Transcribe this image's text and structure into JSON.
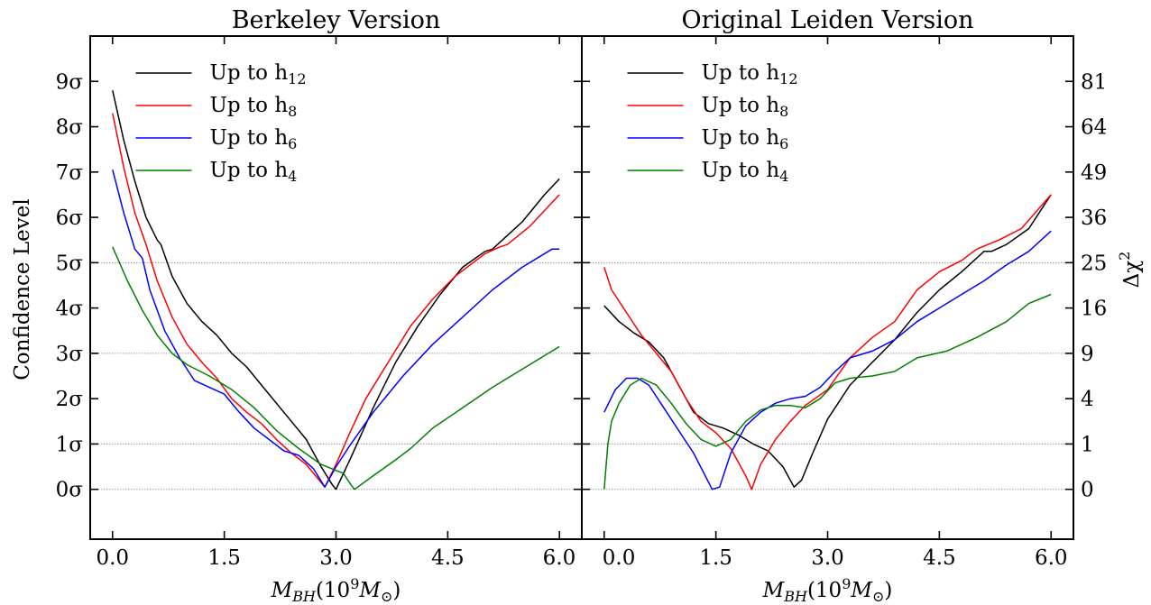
{
  "chart_data": [
    {
      "type": "line",
      "title": "Berkeley Version",
      "ylabel": "Confidence Level",
      "xlabel": "M_{BH}(10^9 M_⊙)",
      "xlabel_parts": {
        "a": "M",
        "b": "BH",
        "c": "(10",
        "d": "9",
        "e": "M",
        "f": "⊙",
        "g": ")"
      },
      "xlim": [
        -0.3,
        6.3
      ],
      "ylim": [
        -1.1,
        10.0
      ],
      "x_ticks": [
        "0.0",
        "1.5",
        "3.0",
        "4.5",
        "6.0"
      ],
      "x_tick_values": [
        0.0,
        1.5,
        3.0,
        4.5,
        6.0
      ],
      "y_ticks_left": [
        "0σ",
        "1σ",
        "2σ",
        "3σ",
        "4σ",
        "5σ",
        "6σ",
        "7σ",
        "8σ",
        "9σ"
      ],
      "y_tick_values": [
        0,
        1,
        2,
        3,
        4,
        5,
        6,
        7,
        8,
        9
      ],
      "grid_y": [
        0,
        1,
        3,
        5
      ],
      "legend_placement": "top-center",
      "series": [
        {
          "name": "Up to h",
          "subscript": "12",
          "color": "#000000",
          "x": [
            0.0,
            0.15,
            0.3,
            0.45,
            0.6,
            0.65,
            0.8,
            1.0,
            1.2,
            1.4,
            1.6,
            1.8,
            2.0,
            2.2,
            2.4,
            2.6,
            2.8,
            2.95,
            3.0,
            3.2,
            3.5,
            3.8,
            4.1,
            4.4,
            4.7,
            5.0,
            5.1,
            5.2,
            5.5,
            5.8,
            6.0
          ],
          "y": [
            8.8,
            7.7,
            6.8,
            6.0,
            5.5,
            5.4,
            4.7,
            4.1,
            3.7,
            3.4,
            3.0,
            2.7,
            2.3,
            1.9,
            1.5,
            1.1,
            0.5,
            0.1,
            0.0,
            0.7,
            1.8,
            2.8,
            3.6,
            4.3,
            4.9,
            5.25,
            5.3,
            5.45,
            5.9,
            6.5,
            6.85
          ]
        },
        {
          "name": "Up to h",
          "subscript": "8",
          "color": "#ff0000",
          "x": [
            0.0,
            0.15,
            0.3,
            0.45,
            0.6,
            0.8,
            1.0,
            1.2,
            1.4,
            1.6,
            1.8,
            2.0,
            2.2,
            2.4,
            2.6,
            2.75,
            2.85,
            3.0,
            3.2,
            3.4,
            3.7,
            4.0,
            4.3,
            4.6,
            5.0,
            5.2,
            5.3,
            5.6,
            6.0
          ],
          "y": [
            8.3,
            7.1,
            6.1,
            5.4,
            4.6,
            3.8,
            3.2,
            2.8,
            2.45,
            2.0,
            1.7,
            1.45,
            1.1,
            0.8,
            0.55,
            0.25,
            0.05,
            0.55,
            1.3,
            2.0,
            2.8,
            3.6,
            4.2,
            4.7,
            5.2,
            5.35,
            5.4,
            5.8,
            6.5
          ]
        },
        {
          "name": "Up to h",
          "subscript": "6",
          "color": "#0000ff",
          "x": [
            0.0,
            0.15,
            0.3,
            0.4,
            0.5,
            0.7,
            0.9,
            1.1,
            1.3,
            1.5,
            1.7,
            1.9,
            2.1,
            2.3,
            2.5,
            2.7,
            2.85,
            3.0,
            3.2,
            3.5,
            3.9,
            4.3,
            4.7,
            5.1,
            5.5,
            5.9,
            6.0
          ],
          "y": [
            7.05,
            6.1,
            5.3,
            5.1,
            4.4,
            3.5,
            2.9,
            2.4,
            2.25,
            2.1,
            1.7,
            1.35,
            1.1,
            0.85,
            0.75,
            0.45,
            0.05,
            0.5,
            1.0,
            1.7,
            2.5,
            3.2,
            3.8,
            4.4,
            4.9,
            5.3,
            5.3
          ]
        },
        {
          "name": "Up to h",
          "subscript": "4",
          "color": "#008000",
          "x": [
            0.0,
            0.2,
            0.4,
            0.6,
            0.8,
            1.0,
            1.3,
            1.6,
            1.9,
            2.2,
            2.5,
            2.8,
            3.1,
            3.2,
            3.25,
            3.5,
            3.8,
            4.0,
            4.3,
            4.7,
            5.1,
            5.5,
            6.0
          ],
          "y": [
            5.35,
            4.6,
            3.95,
            3.4,
            3.0,
            2.75,
            2.5,
            2.2,
            1.8,
            1.3,
            0.9,
            0.55,
            0.35,
            0.1,
            0.0,
            0.3,
            0.65,
            0.9,
            1.35,
            1.8,
            2.25,
            2.65,
            3.15
          ]
        }
      ]
    },
    {
      "type": "line",
      "title": "Original Leiden Version",
      "ylabel": "Δχ²",
      "ylabel_parts": {
        "a": "Δχ",
        "b": "2"
      },
      "xlabel": "M_{BH}(10^9 M_⊙)",
      "xlabel_parts": {
        "a": "M",
        "b": "BH",
        "c": "(10",
        "d": "9",
        "e": "M",
        "f": "⊙",
        "g": ")"
      },
      "xlim": [
        -0.3,
        6.3
      ],
      "ylim": [
        -1.1,
        10.0
      ],
      "x_ticks": [
        "0.0",
        "1.5",
        "3.0",
        "4.5",
        "6.0"
      ],
      "x_tick_values": [
        0.0,
        1.5,
        3.0,
        4.5,
        6.0
      ],
      "y_ticks_right": [
        "0",
        "1",
        "4",
        "9",
        "16",
        "25",
        "36",
        "49",
        "64",
        "81"
      ],
      "y_tick_values": [
        0,
        1,
        2,
        3,
        4,
        5,
        6,
        7,
        8,
        9
      ],
      "grid_y": [
        0,
        1,
        3,
        5
      ],
      "legend_placement": "top-center",
      "series": [
        {
          "name": "Up to h",
          "subscript": "12",
          "color": "#000000",
          "x": [
            0.0,
            0.2,
            0.4,
            0.6,
            0.8,
            1.0,
            1.2,
            1.4,
            1.6,
            1.8,
            2.0,
            2.2,
            2.4,
            2.55,
            2.65,
            2.8,
            3.0,
            3.3,
            3.6,
            3.9,
            4.2,
            4.5,
            4.8,
            5.0,
            5.1,
            5.2,
            5.4,
            5.7,
            6.0
          ],
          "y": [
            4.05,
            3.7,
            3.45,
            3.25,
            2.9,
            2.3,
            1.7,
            1.45,
            1.35,
            1.2,
            1.0,
            0.85,
            0.5,
            0.05,
            0.2,
            0.8,
            1.55,
            2.3,
            2.8,
            3.3,
            3.9,
            4.4,
            4.8,
            5.1,
            5.25,
            5.25,
            5.4,
            5.75,
            6.5
          ]
        },
        {
          "name": "Up to h",
          "subscript": "8",
          "color": "#ff0000",
          "x": [
            0.0,
            0.1,
            0.3,
            0.5,
            0.7,
            0.9,
            1.1,
            1.3,
            1.5,
            1.7,
            1.9,
            1.98,
            2.1,
            2.3,
            2.5,
            2.7,
            3.0,
            3.3,
            3.6,
            3.9,
            4.2,
            4.5,
            4.8,
            5.0,
            5.3,
            5.6,
            6.0
          ],
          "y": [
            4.9,
            4.4,
            3.9,
            3.4,
            3.0,
            2.6,
            2.0,
            1.5,
            1.25,
            0.9,
            0.3,
            0.0,
            0.55,
            1.1,
            1.5,
            1.85,
            2.2,
            2.9,
            3.35,
            3.7,
            4.4,
            4.8,
            5.05,
            5.3,
            5.5,
            5.75,
            6.5
          ]
        },
        {
          "name": "Up to h",
          "subscript": "6",
          "color": "#0000ff",
          "x": [
            0.0,
            0.15,
            0.3,
            0.45,
            0.6,
            0.8,
            1.0,
            1.2,
            1.45,
            1.55,
            1.7,
            1.9,
            2.1,
            2.3,
            2.5,
            2.7,
            2.9,
            3.1,
            3.3,
            3.6,
            3.9,
            4.2,
            4.5,
            4.8,
            5.1,
            5.4,
            5.7,
            6.0
          ],
          "y": [
            1.7,
            2.2,
            2.45,
            2.45,
            2.3,
            1.8,
            1.3,
            0.8,
            0.0,
            0.05,
            0.8,
            1.4,
            1.7,
            1.9,
            2.0,
            2.05,
            2.25,
            2.6,
            2.9,
            3.05,
            3.3,
            3.7,
            4.0,
            4.3,
            4.6,
            4.95,
            5.25,
            5.7
          ]
        },
        {
          "name": "Up to h",
          "subscript": "4",
          "color": "#008000",
          "x": [
            0.0,
            0.05,
            0.1,
            0.2,
            0.35,
            0.5,
            0.7,
            0.9,
            1.1,
            1.3,
            1.5,
            1.7,
            1.9,
            2.1,
            2.3,
            2.5,
            2.7,
            2.9,
            3.1,
            3.3,
            3.6,
            3.9,
            4.2,
            4.6,
            5.0,
            5.4,
            5.7,
            6.0
          ],
          "y": [
            0.0,
            1.0,
            1.5,
            1.9,
            2.3,
            2.45,
            2.3,
            1.9,
            1.45,
            1.1,
            0.95,
            1.1,
            1.5,
            1.75,
            1.85,
            1.85,
            1.8,
            2.0,
            2.35,
            2.45,
            2.5,
            2.6,
            2.9,
            3.05,
            3.35,
            3.7,
            4.1,
            4.3
          ]
        }
      ]
    }
  ]
}
